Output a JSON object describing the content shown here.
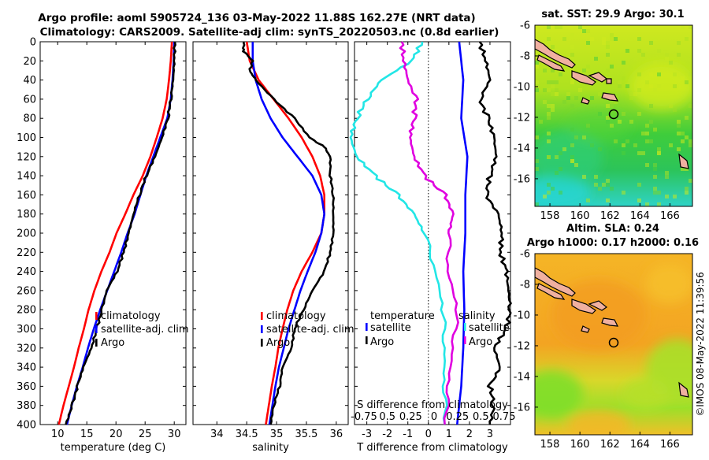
{
  "title": {
    "line1": "Argo profile: aoml 5905724_136 03-May-2022 11.88S 162.27E (NRT data)",
    "line2": "Climatology: CARS2009. Satellite-adj clim: synTS_20220503.nc (0.8d earlier)"
  },
  "colors": {
    "climatology": "#ff0000",
    "satellite": "#0000ff",
    "argo": "#000000",
    "sat_diff_s": "#22e6e6",
    "argo_diff_s": "#e000e0"
  },
  "chart_data": [
    {
      "id": "temperature",
      "type": "line",
      "xlabel": "temperature (deg C)",
      "xlim": [
        7,
        32
      ],
      "xticks": [
        10,
        15,
        20,
        25,
        30
      ],
      "ylim": [
        0,
        400
      ],
      "yticks": [
        0,
        20,
        40,
        60,
        80,
        100,
        120,
        140,
        160,
        180,
        200,
        220,
        240,
        260,
        280,
        300,
        320,
        340,
        360,
        380,
        400
      ],
      "legend": [
        "climatology",
        "satellite-adj. clim",
        "Argo"
      ],
      "series": [
        {
          "name": "climatology",
          "color": "#ff0000",
          "depth": [
            0,
            20,
            40,
            60,
            80,
            100,
            120,
            140,
            160,
            180,
            200,
            220,
            240,
            260,
            280,
            300,
            320,
            340,
            360,
            380,
            400
          ],
          "values": [
            29.6,
            29.4,
            29.1,
            28.7,
            28.0,
            27.0,
            25.9,
            24.6,
            23.0,
            21.6,
            20.1,
            18.9,
            17.5,
            16.3,
            15.3,
            14.5,
            13.6,
            12.8,
            11.9,
            11.0,
            10.2
          ]
        },
        {
          "name": "satellite-adj. clim",
          "color": "#0000ff",
          "depth": [
            0,
            20,
            40,
            60,
            80,
            100,
            120,
            140,
            160,
            180,
            200,
            220,
            240,
            260,
            280,
            300,
            320,
            340,
            360,
            380,
            400
          ],
          "values": [
            30.0,
            29.9,
            29.7,
            29.4,
            28.8,
            27.6,
            26.4,
            25.2,
            24.2,
            23.2,
            22.0,
            20.9,
            19.7,
            18.5,
            17.3,
            16.2,
            15.2,
            14.3,
            13.3,
            12.4,
            11.6
          ]
        },
        {
          "name": "Argo",
          "color": "#000000",
          "depth": [
            0,
            20,
            40,
            60,
            80,
            100,
            120,
            140,
            160,
            180,
            200,
            220,
            240,
            260,
            280,
            300,
            320,
            340,
            360,
            380,
            400
          ],
          "values": [
            30.1,
            30.0,
            29.8,
            29.4,
            28.9,
            27.9,
            26.7,
            25.2,
            24.0,
            23.0,
            22.2,
            21.3,
            20.2,
            18.4,
            17.6,
            16.7,
            15.8,
            14.4,
            13.4,
            12.5,
            11.4
          ]
        }
      ]
    },
    {
      "id": "salinity",
      "type": "line",
      "xlabel": "salinity",
      "xlim": [
        33.6,
        36.2
      ],
      "xticks": [
        34,
        34.5,
        35,
        35.5,
        36
      ],
      "ylim": [
        0,
        400
      ],
      "legend": [
        "climatology",
        "satellite-adj. clim",
        "Argo"
      ],
      "series": [
        {
          "name": "climatology",
          "color": "#ff0000",
          "depth": [
            0,
            20,
            40,
            60,
            80,
            100,
            120,
            140,
            160,
            180,
            200,
            220,
            240,
            260,
            280,
            300,
            320,
            340,
            360,
            380,
            400
          ],
          "values": [
            34.5,
            34.55,
            34.7,
            34.95,
            35.2,
            35.42,
            35.6,
            35.73,
            35.8,
            35.8,
            35.75,
            35.6,
            35.42,
            35.28,
            35.18,
            35.1,
            35.03,
            34.98,
            34.92,
            34.87,
            34.82
          ]
        },
        {
          "name": "satellite-adj. clim",
          "color": "#0000ff",
          "depth": [
            0,
            20,
            40,
            60,
            80,
            100,
            120,
            140,
            160,
            180,
            200,
            220,
            240,
            260,
            280,
            300,
            320,
            340,
            360,
            380,
            400
          ],
          "values": [
            34.6,
            34.6,
            34.65,
            34.75,
            34.9,
            35.1,
            35.35,
            35.6,
            35.75,
            35.8,
            35.75,
            35.65,
            35.52,
            35.4,
            35.3,
            35.2,
            35.12,
            35.04,
            34.98,
            34.93,
            34.88
          ]
        },
        {
          "name": "Argo",
          "color": "#000000",
          "depth": [
            0,
            10,
            20,
            30,
            40,
            60,
            80,
            100,
            110,
            120,
            140,
            160,
            180,
            200,
            220,
            240,
            260,
            280,
            300,
            320,
            340,
            360,
            380,
            400
          ],
          "values": [
            34.45,
            34.45,
            34.6,
            34.55,
            34.65,
            34.95,
            35.3,
            35.55,
            35.8,
            35.9,
            35.9,
            35.95,
            35.95,
            35.95,
            35.9,
            35.8,
            35.6,
            35.45,
            35.3,
            35.25,
            35.1,
            35.05,
            34.95,
            34.9
          ]
        }
      ]
    },
    {
      "id": "difference",
      "type": "line",
      "xlabel": "T difference from climatology",
      "top_label": "S difference from climatology",
      "xlim": [
        -3.6,
        4.0
      ],
      "xticks": [
        -3,
        -2,
        -1,
        0,
        1,
        2,
        3
      ],
      "top_xlim": [
        -0.9,
        1.0
      ],
      "top_ticks": [
        "-0.75",
        "0.5",
        "0.25",
        "0",
        "0.25",
        "0.5",
        "0.75"
      ],
      "ylim": [
        0,
        400
      ],
      "legend": {
        "left_title": "temperature",
        "left": [
          "satellite",
          "Argo"
        ],
        "right_title": "salinity",
        "right": [
          "satellite",
          "Argo"
        ]
      },
      "series": [
        {
          "name": "satellite T diff",
          "color": "#0000ff",
          "depth": [
            0,
            40,
            80,
            120,
            160,
            200,
            240,
            280,
            320,
            360,
            400
          ],
          "values": [
            1.5,
            1.7,
            1.6,
            1.9,
            1.8,
            1.8,
            1.7,
            1.75,
            1.7,
            1.6,
            1.4
          ]
        },
        {
          "name": "Argo T diff",
          "color": "#000000",
          "depth": [
            0,
            20,
            40,
            60,
            80,
            100,
            120,
            140,
            160,
            180,
            200,
            220,
            240,
            260,
            280,
            300,
            320,
            340,
            360,
            380,
            400
          ],
          "values": [
            2.5,
            2.8,
            3.0,
            2.5,
            2.9,
            3.2,
            3.3,
            3.0,
            2.8,
            3.4,
            3.6,
            3.5,
            3.8,
            3.9,
            4.0,
            3.8,
            3.2,
            3.5,
            3.0,
            3.2,
            3.0
          ]
        },
        {
          "name": "satellite S diff",
          "color": "#22e6e6",
          "depth": [
            0,
            20,
            40,
            60,
            80,
            100,
            120,
            140,
            160,
            180,
            200,
            240,
            280,
            320,
            360,
            400
          ],
          "values": [
            -0.3,
            -0.8,
            -2.3,
            -3.0,
            -3.5,
            -3.8,
            -3.5,
            -2.6,
            -1.5,
            -0.7,
            -0.2,
            0.4,
            0.7,
            0.8,
            0.8,
            0.8
          ]
        },
        {
          "name": "Argo S diff",
          "color": "#e000e0",
          "depth": [
            0,
            20,
            40,
            60,
            80,
            100,
            120,
            140,
            160,
            180,
            200,
            240,
            280,
            320,
            360,
            400
          ],
          "values": [
            -1.3,
            -1.2,
            -1.0,
            -0.6,
            -0.7,
            -0.9,
            -0.7,
            -0.2,
            0.8,
            1.2,
            1.0,
            1.0,
            1.4,
            1.2,
            1.0,
            0.8
          ]
        }
      ]
    },
    {
      "id": "sst_map",
      "type": "heatmap",
      "title": "sat. SST: 29.9 Argo: 30.1",
      "xticks": [
        158,
        160,
        162,
        164,
        166
      ],
      "yticks": [
        -6,
        -8,
        -10,
        -12,
        -14,
        -16
      ],
      "xlim": [
        157,
        167.5
      ],
      "ylim": [
        -17.8,
        -6
      ],
      "profile_location": {
        "lon": 162.27,
        "lat": -11.88
      }
    },
    {
      "id": "sla_map",
      "type": "heatmap",
      "title": "Altim. SLA: 0.24",
      "subtitle": "Argo h1000: 0.17 h2000: 0.16",
      "xticks": [
        158,
        160,
        162,
        164,
        166
      ],
      "yticks": [
        -6,
        -8,
        -10,
        -12,
        -14,
        -16
      ],
      "xlim": [
        157,
        167.5
      ],
      "ylim": [
        -17.8,
        -6
      ],
      "profile_location": {
        "lon": 162.27,
        "lat": -11.88
      }
    }
  ],
  "credit": "©IMOS 08-May-2022 11:39:56"
}
